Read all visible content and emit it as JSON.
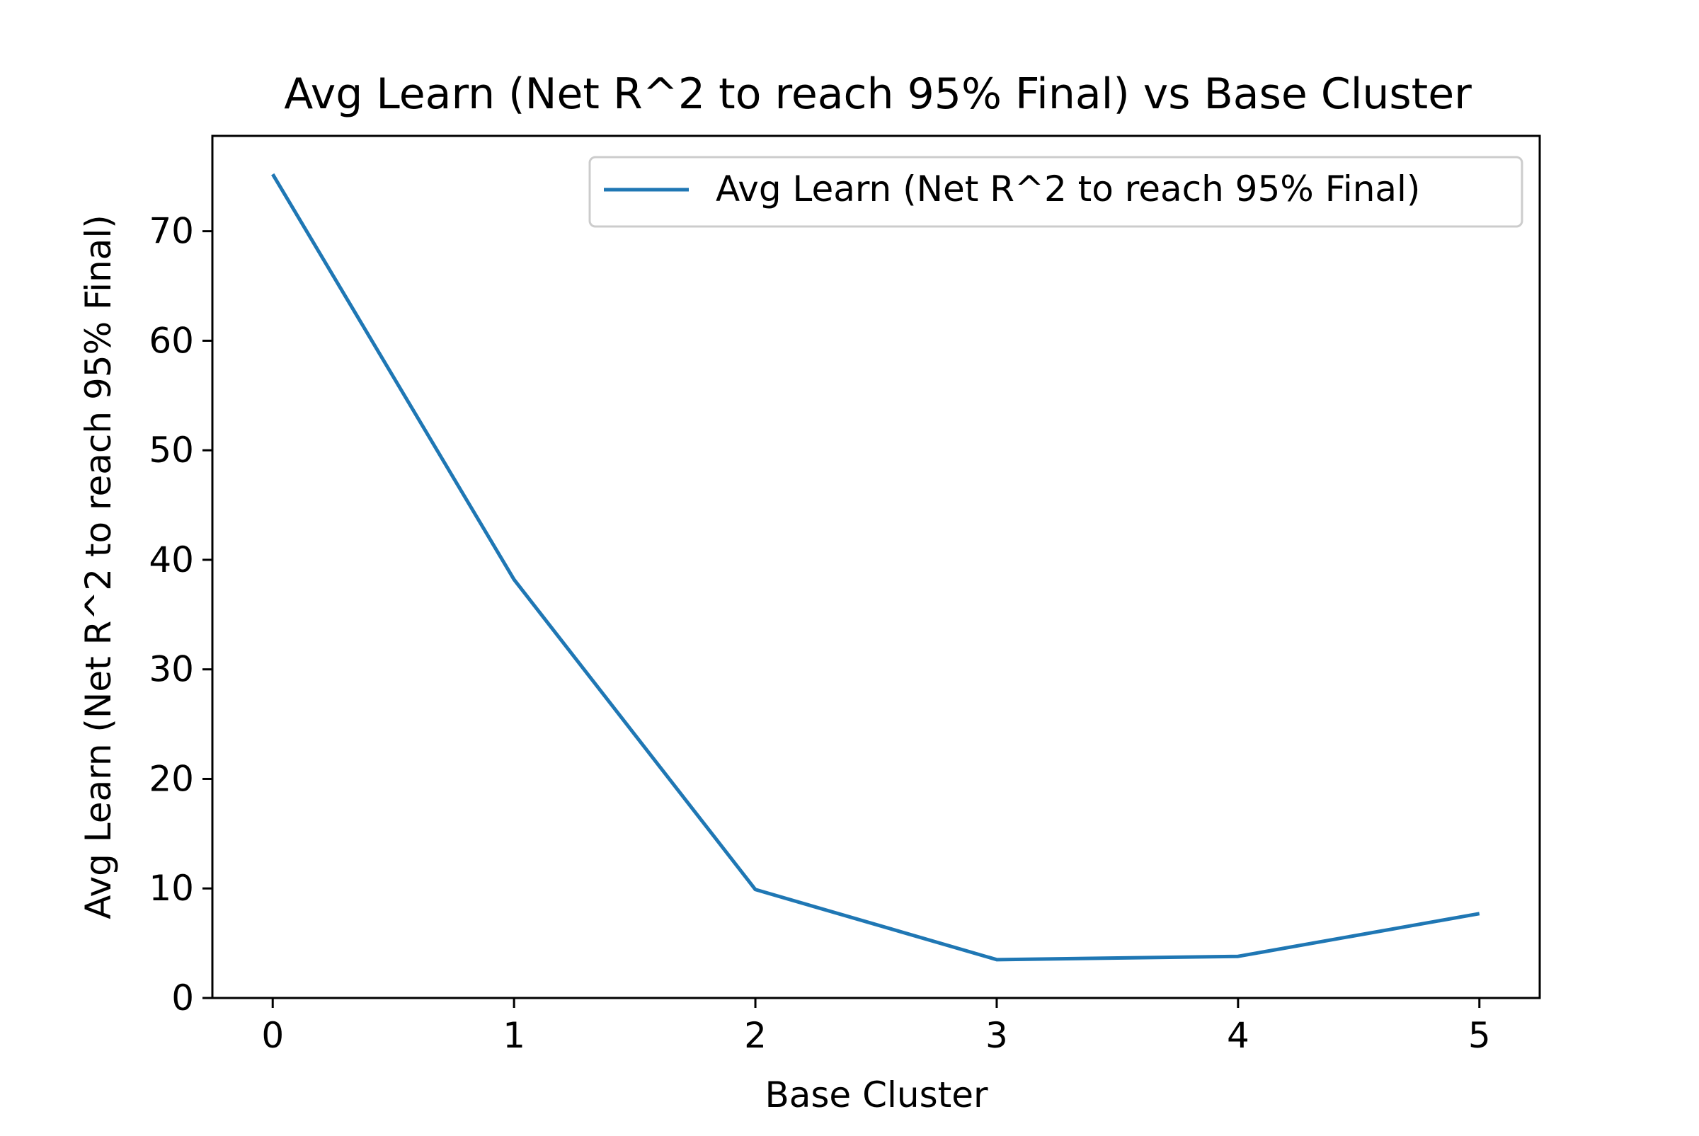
{
  "chart_data": {
    "type": "line",
    "title": "Avg Learn (Net R^2 to reach 95% Final) vs Base Cluster",
    "xlabel": "Base Cluster",
    "ylabel": "Avg Learn (Net R^2 to reach 95% Final)",
    "x": [
      0,
      1,
      2,
      3,
      4,
      5
    ],
    "series": [
      {
        "name": "Avg Learn (Net R^2 to reach 95% Final)",
        "values": [
          75.2,
          38.2,
          9.9,
          3.5,
          3.8,
          7.7
        ],
        "color": "#1f77b4"
      }
    ],
    "xlim": [
      -0.25,
      5.25
    ],
    "ylim": [
      0,
      78.7
    ],
    "xticks": [
      0,
      1,
      2,
      3,
      4,
      5
    ],
    "yticks": [
      0,
      10,
      20,
      30,
      40,
      50,
      60,
      70
    ],
    "xtick_labels": [
      "0",
      "1",
      "2",
      "3",
      "4",
      "5"
    ],
    "ytick_labels": [
      "0",
      "10",
      "20",
      "30",
      "40",
      "50",
      "60",
      "70"
    ],
    "grid": false,
    "legend_position": "upper right"
  }
}
